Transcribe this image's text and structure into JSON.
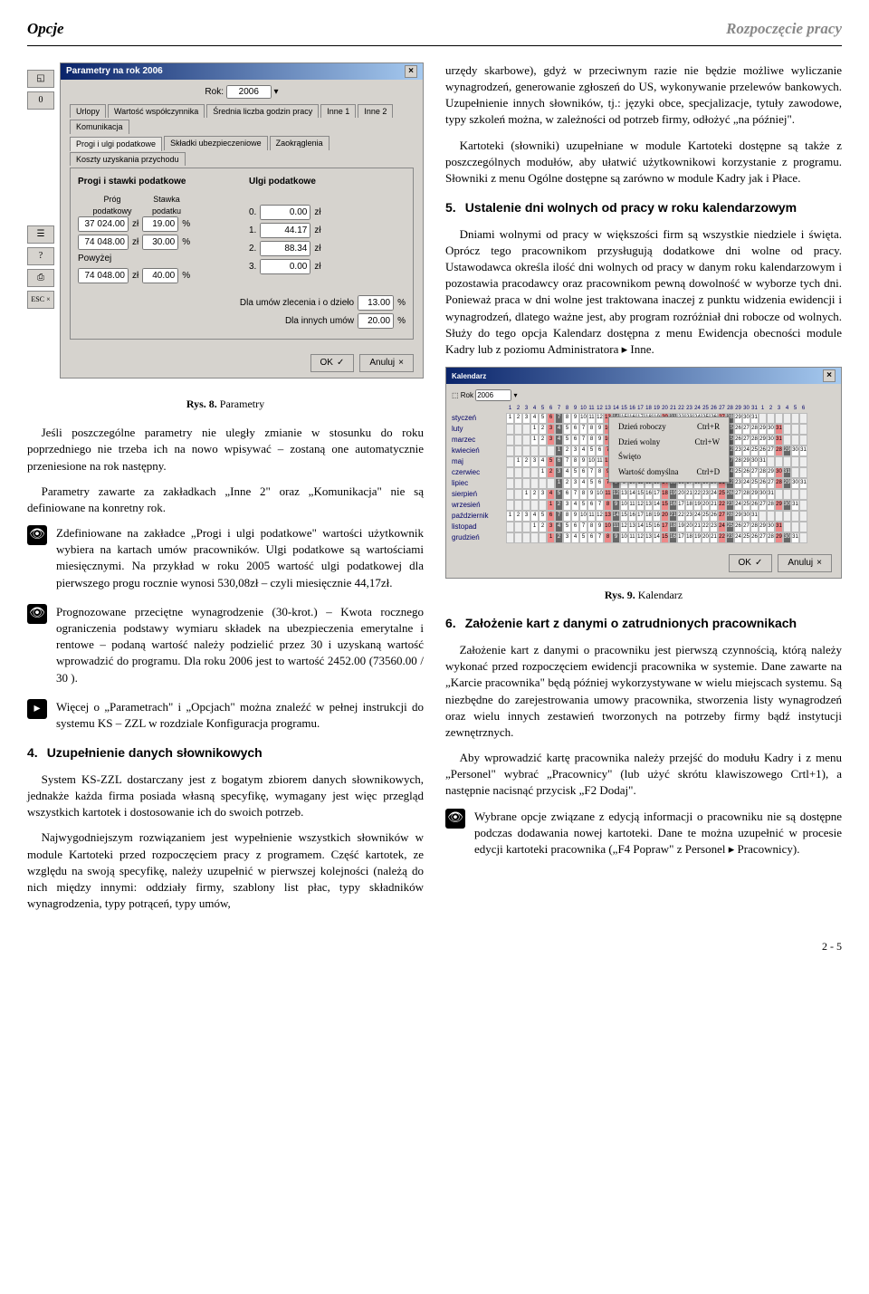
{
  "header": {
    "left": "Opcje",
    "right": "Rozpoczęcie pracy"
  },
  "dialog1": {
    "title": "Parametry na rok 2006",
    "year_label": "Rok:",
    "year_value": "2006",
    "tabs_row1": [
      "Urlopy",
      "Wartość współczynnika",
      "Średnia liczba godzin pracy",
      "Inne 1",
      "Inne 2",
      "Komunikacja"
    ],
    "tabs_row2": [
      "Progi i ulgi podatkowe",
      "Składki ubezpieczeniowe",
      "Zaokrąglenia",
      "Koszty uzyskania przychodu"
    ],
    "active_tab": "Progi i ulgi podatkowe",
    "group_left": "Progi i stawki podatkowe",
    "group_right": "Ulgi podatkowe",
    "col_headers": [
      "Próg podatkowy",
      "Stawka podatku"
    ],
    "row1": {
      "threshold": "37 024.00",
      "unit": "zł",
      "rate": "19.00",
      "pct": "%"
    },
    "row2": {
      "threshold": "74 048.00",
      "unit": "zł",
      "rate": "30.00",
      "pct": "%"
    },
    "above_label": "Powyżej",
    "row3": {
      "threshold": "74 048.00",
      "unit": "zł",
      "rate": "40.00",
      "pct": "%"
    },
    "relief": [
      {
        "n": "0.",
        "v": "0.00",
        "u": "zł"
      },
      {
        "n": "1.",
        "v": "44.17",
        "u": "zł"
      },
      {
        "n": "2.",
        "v": "88.34",
        "u": "zł"
      },
      {
        "n": "3.",
        "v": "0.00",
        "u": "zł"
      }
    ],
    "contract_label": "Dla umów zlecenia i o dzieło",
    "contract_value": "13.00",
    "other_label": "Dla innych umów",
    "other_value": "20.00",
    "toolbar": [
      "",
      "",
      "?",
      "",
      "ESC ×"
    ],
    "ok": "OK",
    "cancel": "Anuluj"
  },
  "caption1": {
    "prefix": "Rys. 8.",
    "text": "Parametry"
  },
  "para1": "Jeśli poszczególne parametry nie uległy zmianie w stosunku do roku poprzedniego nie trzeba ich na nowo wpisywać – zostaną one automatycznie przeniesione na rok następny.",
  "para2": "Parametry zawarte za zakładkach „Inne 2\" oraz „Komunikacja\" nie są definiowane na konretny rok.",
  "note1": "Zdefiniowane na zakładce „Progi i ulgi podatkowe\" wartości użytkownik wybiera na kartach umów pracowników. Ulgi podatkowe są wartościami miesięcznymi. Na przykład w roku 2005 wartość ulgi podatkowej dla pierwszego progu rocznie wynosi 530,08zł – czyli miesięcznie 44,17zł.",
  "note2": "Prognozowane przeciętne wynagrodzenie (30-krot.) – Kwota rocznego ograniczenia podstawy wymiaru składek na ubezpieczenia emerytalne i rentowe – podaną wartość należy podzielić przez 30 i uzyskaną wartość wprowadzić do programu. Dla roku 2006 jest to wartość 2452.00 (73560.00 / 30 ).",
  "note3": "Więcej o „Parametrach\" i „Opcjach\" można znaleźć w pełnej instrukcji do systemu KS – ZZL w rozdziale Konfiguracja programu.",
  "sec4": {
    "num": "4.",
    "title": "Uzupełnienie danych słownikowych"
  },
  "para4a": "System KS-ZZL dostarczany jest z bogatym zbiorem danych słownikowych, jednakże każda firma posiada własną specyfikę, wymagany jest więc przegląd wszystkich kartotek i dostosowanie ich do swoich potrzeb.",
  "para4b": "Najwygodniejszym rozwiązaniem jest wypełnienie wszystkich słowników w module Kartoteki przed rozpoczęciem pracy z programem. Część kartotek, ze względu na swoją specyfikę, należy uzupełnić w pierwszej kolejności (należą do nich między innymi: oddziały firmy, szablony list płac, typy składników wynagrodzenia, typy potrąceń, typy umów,",
  "para_right1": "urzędy skarbowe), gdyż w przeciwnym razie nie będzie możliwe wyliczanie wynagrodzeń, generowanie zgłoszeń do US, wykonywanie przelewów bankowych. Uzupełnienie innych słowników, tj.: języki obce, specjalizacje, tytuły zawodowe, typy szkoleń można, w zależności od potrzeb firmy, odłożyć „na później\".",
  "para_right2": "Kartoteki (słowniki) uzupełniane w module Kartoteki dostępne są także z poszczególnych modułów, aby ułatwić użytkownikowi korzystanie z programu. Słowniki z menu Ogólne dostępne są zarówno w module Kadry jak i Płace.",
  "sec5": {
    "num": "5.",
    "title": "Ustalenie dni wolnych od pracy w roku kalendarzowym"
  },
  "para5a": "Dniami wolnymi od pracy w większości firm są wszystkie niedziele i święta. Oprócz tego pracownikom przysługują dodatkowe dni wolne od pracy. Ustawodawca określa ilość dni wolnych od pracy w danym roku kalendarzowym i pozostawia pracodawcy oraz pracownikom pewną dowolność w wyborze tych dni. Ponieważ praca w dni wolne jest traktowana inaczej z punktu widzenia ewidencji i wynagrodzeń, dlatego ważne jest, aby program rozróżniał dni robocze od wolnych. Służy do tego opcja Kalendarz dostępna z menu Ewidencja obecności module Kadry lub z poziomu Administratora ▸ Inne.",
  "calendar": {
    "title": "Kalendarz",
    "year": "2006",
    "months": [
      "styczeń",
      "luty",
      "marzec",
      "kwiecień",
      "maj",
      "czerwiec",
      "lipiec",
      "sierpień",
      "wrzesień",
      "październik",
      "listopad",
      "grudzień"
    ],
    "day_headers": "N Pn Wt Śr Cz Pt So N Pn Wt Śr Cz Pt So N Pn Wt Śr Cz Pt So N Pn Wt Śr Cz Pt So N Pn",
    "context_menu": [
      {
        "label": "Dzień roboczy",
        "key": "Ctrl+R"
      },
      {
        "label": "Dzień wolny",
        "key": "Ctrl+W"
      },
      {
        "label": "Święto",
        "key": ""
      },
      {
        "label": "Wartość domyślna",
        "key": "Ctrl+D"
      }
    ],
    "ok": "OK",
    "cancel": "Anuluj"
  },
  "caption2": {
    "prefix": "Rys. 9.",
    "text": "Kalendarz"
  },
  "sec6": {
    "num": "6.",
    "title": "Założenie kart z danymi o zatrudnionych pracownikach"
  },
  "para6a": "Założenie kart z danymi o pracowniku jest pierwszą czynnością, którą należy wykonać przed rozpoczęciem ewidencji pracownika w systemie. Dane zawarte na „Karcie pracownika\" będą później wykorzystywane w wielu miejscach systemu. Są niezbędne do zarejestrowania umowy pracownika, stworzenia listy wynagrodzeń oraz wielu innych zestawień tworzonych na potrzeby firmy bądź instytucji zewnętrznych.",
  "para6b": "Aby wprowadzić kartę pracownika należy przejść do modułu Kadry i z menu „Personel\" wybrać „Pracownicy\" (lub użyć skrótu klawiszowego Crtl+1), a następnie nacisnąć przycisk „F2 Dodaj\".",
  "note4": "Wybrane opcje związane z edycją informacji o pracowniku nie są dostępne podczas dodawania nowej kartoteki. Dane te można uzupełnić w procesie edycji kartoteki pracownika („F4 Popraw\" z Personel ▸ Pracownicy).",
  "page": "2 - 5"
}
